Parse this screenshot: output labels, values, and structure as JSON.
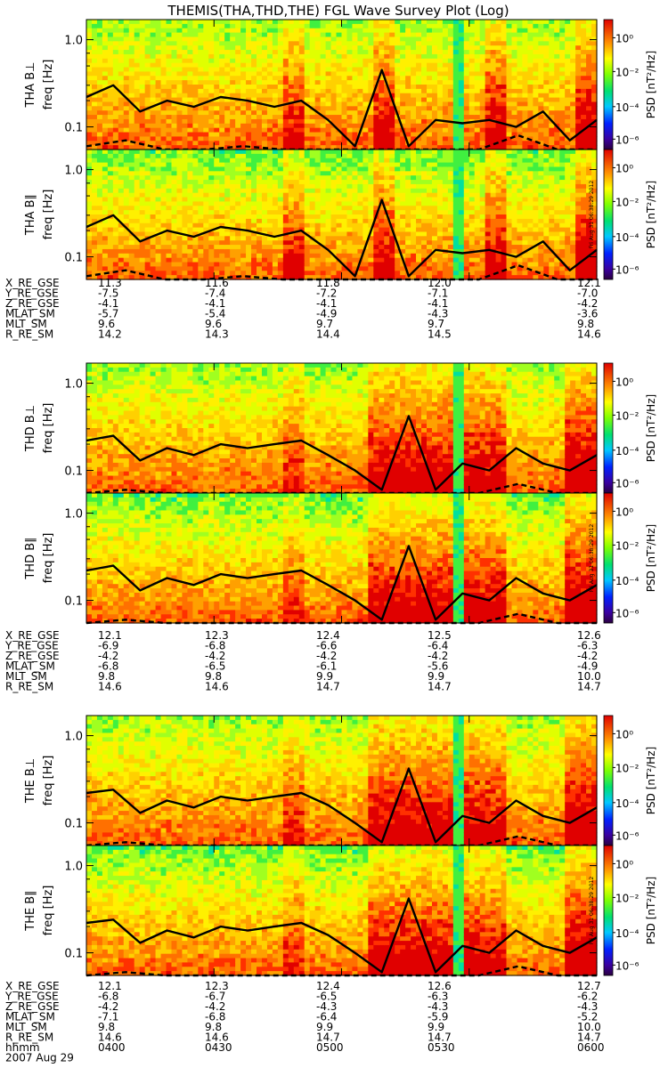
{
  "title": "THEMIS(THA,THD,THE) FGL Wave Survey Plot (Log)",
  "colorbar": {
    "label": "PSD [nT²/Hz]",
    "ticks": [
      "10⁰",
      "10⁻²",
      "10⁻⁴",
      "10⁻⁶"
    ]
  },
  "freq_ticks": [
    "1.0",
    "0.1"
  ],
  "freq_label": "freq [Hz]",
  "stamp": "Fri Aug 31 06:38:29 2012",
  "date_label": "2007 Aug 29",
  "chart_data": [
    {
      "type": "heatmap",
      "probe": "THA",
      "panels": [
        {
          "title": "THA B⊥",
          "ylabel": "freq [Hz]",
          "ylim": [
            0.055,
            1.7
          ],
          "yscale": "log",
          "solid_line_hz": [
            0.22,
            0.3,
            0.15,
            0.2,
            0.17,
            0.22,
            0.2,
            0.17,
            0.2,
            0.12,
            0.06,
            0.45,
            0.06,
            0.12,
            0.11,
            0.12,
            0.1,
            0.15,
            0.07,
            0.12
          ],
          "dashed_line_hz": [
            0.06,
            0.07,
            0.05,
            0.05,
            0.06,
            0.05,
            0.05,
            0.05,
            0.05,
            0.05,
            0.05,
            0.08,
            0.05,
            0.05
          ]
        },
        {
          "title": "THA B∥",
          "ylabel": "freq [Hz]",
          "ylim": [
            0.055,
            1.7
          ],
          "yscale": "log",
          "solid_line_hz": [
            0.22,
            0.3,
            0.15,
            0.2,
            0.17,
            0.22,
            0.2,
            0.17,
            0.2,
            0.12,
            0.06,
            0.45,
            0.06,
            0.12,
            0.11,
            0.12,
            0.1,
            0.15,
            0.07,
            0.12
          ],
          "dashed_line_hz": [
            0.06,
            0.07,
            0.05,
            0.05,
            0.06,
            0.05,
            0.05,
            0.05,
            0.05,
            0.05,
            0.05,
            0.08,
            0.05,
            0.05
          ]
        }
      ],
      "ephemeris": [
        {
          "label": "X_RE_GSE",
          "values": [
            "11.3",
            "11.6",
            "11.8",
            "12.0",
            "12.1"
          ]
        },
        {
          "label": "Y_RE_GSE",
          "values": [
            "-7.5",
            "-7.4",
            "-7.2",
            "-7.1",
            "-7.0"
          ]
        },
        {
          "label": "Z_RE_GSE",
          "values": [
            "-4.1",
            "-4.1",
            "-4.1",
            "-4.1",
            "-4.2"
          ]
        },
        {
          "label": "MLAT_SM",
          "values": [
            "-5.7",
            "-5.4",
            "-4.9",
            "-4.3",
            "-3.6"
          ]
        },
        {
          "label": "MLT_SM",
          "values": [
            "9.6",
            "9.6",
            "9.7",
            "9.7",
            "9.8"
          ]
        },
        {
          "label": "R_RE_SM",
          "values": [
            "14.2",
            "14.3",
            "14.4",
            "14.5",
            "14.6"
          ]
        }
      ]
    },
    {
      "type": "heatmap",
      "probe": "THD",
      "panels": [
        {
          "title": "THD B⊥",
          "ylabel": "freq [Hz]",
          "ylim": [
            0.055,
            1.7
          ],
          "yscale": "log",
          "solid_line_hz": [
            0.22,
            0.25,
            0.13,
            0.18,
            0.15,
            0.2,
            0.18,
            0.2,
            0.22,
            0.15,
            0.1,
            0.06,
            0.42,
            0.06,
            0.12,
            0.1,
            0.18,
            0.12,
            0.1,
            0.15
          ],
          "dashed_line_hz": [
            0.05,
            0.06,
            0.05,
            0.05,
            0.05,
            0.05,
            0.05,
            0.05,
            0.05,
            0.05,
            0.05,
            0.07,
            0.05,
            0.05
          ]
        },
        {
          "title": "THD B∥",
          "ylabel": "freq [Hz]",
          "ylim": [
            0.055,
            1.7
          ],
          "yscale": "log",
          "solid_line_hz": [
            0.22,
            0.25,
            0.13,
            0.18,
            0.15,
            0.2,
            0.18,
            0.2,
            0.22,
            0.15,
            0.1,
            0.06,
            0.42,
            0.06,
            0.12,
            0.1,
            0.18,
            0.12,
            0.1,
            0.15
          ],
          "dashed_line_hz": [
            0.05,
            0.06,
            0.05,
            0.05,
            0.05,
            0.05,
            0.05,
            0.05,
            0.05,
            0.05,
            0.05,
            0.07,
            0.05,
            0.05
          ]
        }
      ],
      "ephemeris": [
        {
          "label": "X_RE_GSE",
          "values": [
            "12.1",
            "12.3",
            "12.4",
            "12.5",
            "12.6"
          ]
        },
        {
          "label": "Y_RE_GSE",
          "values": [
            "-6.9",
            "-6.8",
            "-6.6",
            "-6.4",
            "-6.3"
          ]
        },
        {
          "label": "Z_RE_GSE",
          "values": [
            "-4.2",
            "-4.2",
            "-4.2",
            "-4.2",
            "-4.2"
          ]
        },
        {
          "label": "MLAT_SM",
          "values": [
            "-6.8",
            "-6.5",
            "-6.1",
            "-5.6",
            "-4.9"
          ]
        },
        {
          "label": "MLT_SM",
          "values": [
            "9.8",
            "9.8",
            "9.9",
            "9.9",
            "10.0"
          ]
        },
        {
          "label": "R_RE_SM",
          "values": [
            "14.6",
            "14.6",
            "14.7",
            "14.7",
            "14.7"
          ]
        }
      ]
    },
    {
      "type": "heatmap",
      "probe": "THE",
      "panels": [
        {
          "title": "THE B⊥",
          "ylabel": "freq [Hz]",
          "ylim": [
            0.055,
            1.7
          ],
          "yscale": "log",
          "solid_line_hz": [
            0.22,
            0.24,
            0.13,
            0.18,
            0.15,
            0.2,
            0.18,
            0.2,
            0.22,
            0.16,
            0.1,
            0.06,
            0.42,
            0.06,
            0.12,
            0.1,
            0.18,
            0.12,
            0.1,
            0.15
          ],
          "dashed_line_hz": [
            0.05,
            0.06,
            0.05,
            0.05,
            0.05,
            0.05,
            0.05,
            0.05,
            0.05,
            0.05,
            0.05,
            0.07,
            0.05,
            0.05
          ]
        },
        {
          "title": "THE B∥",
          "ylabel": "freq [Hz]",
          "ylim": [
            0.055,
            1.7
          ],
          "yscale": "log",
          "solid_line_hz": [
            0.22,
            0.24,
            0.13,
            0.18,
            0.15,
            0.2,
            0.18,
            0.2,
            0.22,
            0.16,
            0.1,
            0.06,
            0.42,
            0.06,
            0.12,
            0.1,
            0.18,
            0.12,
            0.1,
            0.15
          ],
          "dashed_line_hz": [
            0.05,
            0.06,
            0.05,
            0.05,
            0.05,
            0.05,
            0.05,
            0.05,
            0.05,
            0.05,
            0.05,
            0.07,
            0.05,
            0.05
          ]
        }
      ],
      "ephemeris": [
        {
          "label": "X_RE_GSE",
          "values": [
            "12.1",
            "12.3",
            "12.4",
            "12.6",
            "12.7"
          ]
        },
        {
          "label": "Y_RE_GSE",
          "values": [
            "-6.8",
            "-6.7",
            "-6.5",
            "-6.3",
            "-6.2"
          ]
        },
        {
          "label": "Z_RE_GSE",
          "values": [
            "-4.2",
            "-4.2",
            "-4.3",
            "-4.3",
            "-4.3"
          ]
        },
        {
          "label": "MLAT_SM",
          "values": [
            "-7.1",
            "-6.8",
            "-6.4",
            "-5.9",
            "-5.2"
          ]
        },
        {
          "label": "MLT_SM",
          "values": [
            "9.8",
            "9.8",
            "9.9",
            "9.9",
            "10.0"
          ]
        },
        {
          "label": "R_RE_SM",
          "values": [
            "14.6",
            "14.6",
            "14.7",
            "14.7",
            "14.7"
          ]
        }
      ],
      "time_axis": {
        "label": "hhmm",
        "ticks": [
          "0400",
          "0430",
          "0500",
          "0530",
          "0600"
        ]
      }
    }
  ]
}
